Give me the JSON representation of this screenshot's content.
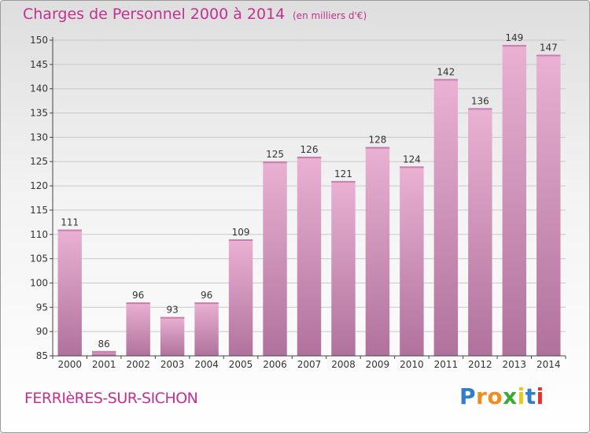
{
  "header": {
    "title": "Charges de Personnel 2000 à 2014",
    "subtitle": "(en milliers d'€)"
  },
  "footer": {
    "commune": "FERRIèRES-SUR-SICHON",
    "brand": [
      "P",
      "r",
      "o",
      "x",
      "i",
      "t",
      "i"
    ]
  },
  "colors": {
    "bar": "#d99ac0",
    "bar_highlight": "#eebad9",
    "bar_shadow": "#a86b93",
    "title": "#c0328f",
    "brand": [
      "#2f7ec7",
      "#f28c1e",
      "#f28c1e",
      "#3aa935",
      "#e8c81b",
      "#2f7ec7",
      "#e4322b"
    ]
  },
  "chart_data": {
    "type": "bar",
    "categories": [
      "2000",
      "2001",
      "2002",
      "2003",
      "2004",
      "2005",
      "2006",
      "2007",
      "2008",
      "2009",
      "2010",
      "2011",
      "2012",
      "2013",
      "2014"
    ],
    "values": [
      111,
      86,
      96,
      93,
      96,
      109,
      125,
      126,
      121,
      128,
      124,
      142,
      136,
      149,
      147
    ],
    "ylim": [
      85,
      150
    ],
    "yticks": [
      85,
      90,
      95,
      100,
      105,
      110,
      115,
      120,
      125,
      130,
      135,
      140,
      145,
      150
    ],
    "grid": true
  }
}
